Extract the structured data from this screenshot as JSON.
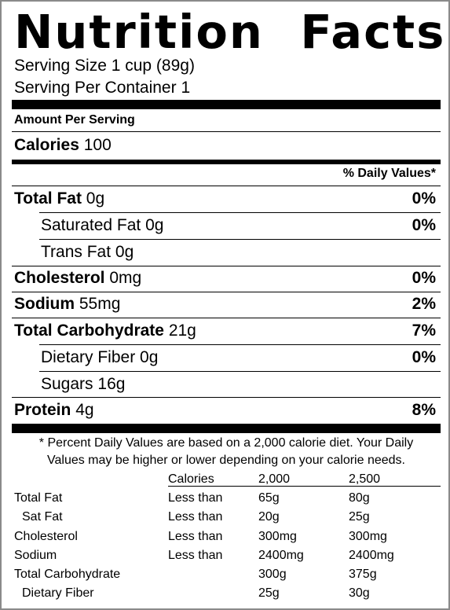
{
  "title": "Nutrition Facts",
  "serving_size": "Serving Size 1 cup (89g)",
  "servings_per_container": "Serving Per Container 1",
  "amount_per_serving": "Amount Per Serving",
  "calories": {
    "label": "Calories",
    "value": "100"
  },
  "daily_values_header": "% Daily Values*",
  "nutrients": [
    {
      "label": "Total Fat",
      "amount": "0g",
      "pct": "0%"
    },
    {
      "label": "Saturated Fat",
      "amount": "0g",
      "pct": "0%"
    },
    {
      "label": "Trans Fat",
      "amount": "0g",
      "pct": ""
    },
    {
      "label": "Cholesterol",
      "amount": "0mg",
      "pct": "0%"
    },
    {
      "label": "Sodium",
      "amount": "55mg",
      "pct": "2%"
    },
    {
      "label": "Total Carbohydrate",
      "amount": "21g",
      "pct": "7%"
    },
    {
      "label": "Dietary Fiber",
      "amount": "0g",
      "pct": "0%"
    },
    {
      "label": "Sugars",
      "amount": "16g",
      "pct": ""
    },
    {
      "label": "Protein",
      "amount": "4g",
      "pct": "8%"
    }
  ],
  "footnote_line1": "* Percent Daily Values are based on a 2,000 calorie diet. Your Daily",
  "footnote_line2": "Values may be higher or lower depending on your calorie needs.",
  "reference_table": {
    "headers": [
      "",
      "Calories",
      "2,000",
      "2,500"
    ],
    "rows": [
      [
        "Total Fat",
        "Less than",
        "65g",
        "80g"
      ],
      [
        "Sat Fat",
        "Less than",
        "20g",
        "25g"
      ],
      [
        "Cholesterol",
        "Less than",
        "300mg",
        "300mg"
      ],
      [
        "Sodium",
        "Less than",
        "2400mg",
        "2400mg"
      ],
      [
        "Total Carbohydrate",
        "",
        "300g",
        "375g"
      ],
      [
        "Dietary Fiber",
        "",
        "25g",
        "30g"
      ]
    ]
  }
}
